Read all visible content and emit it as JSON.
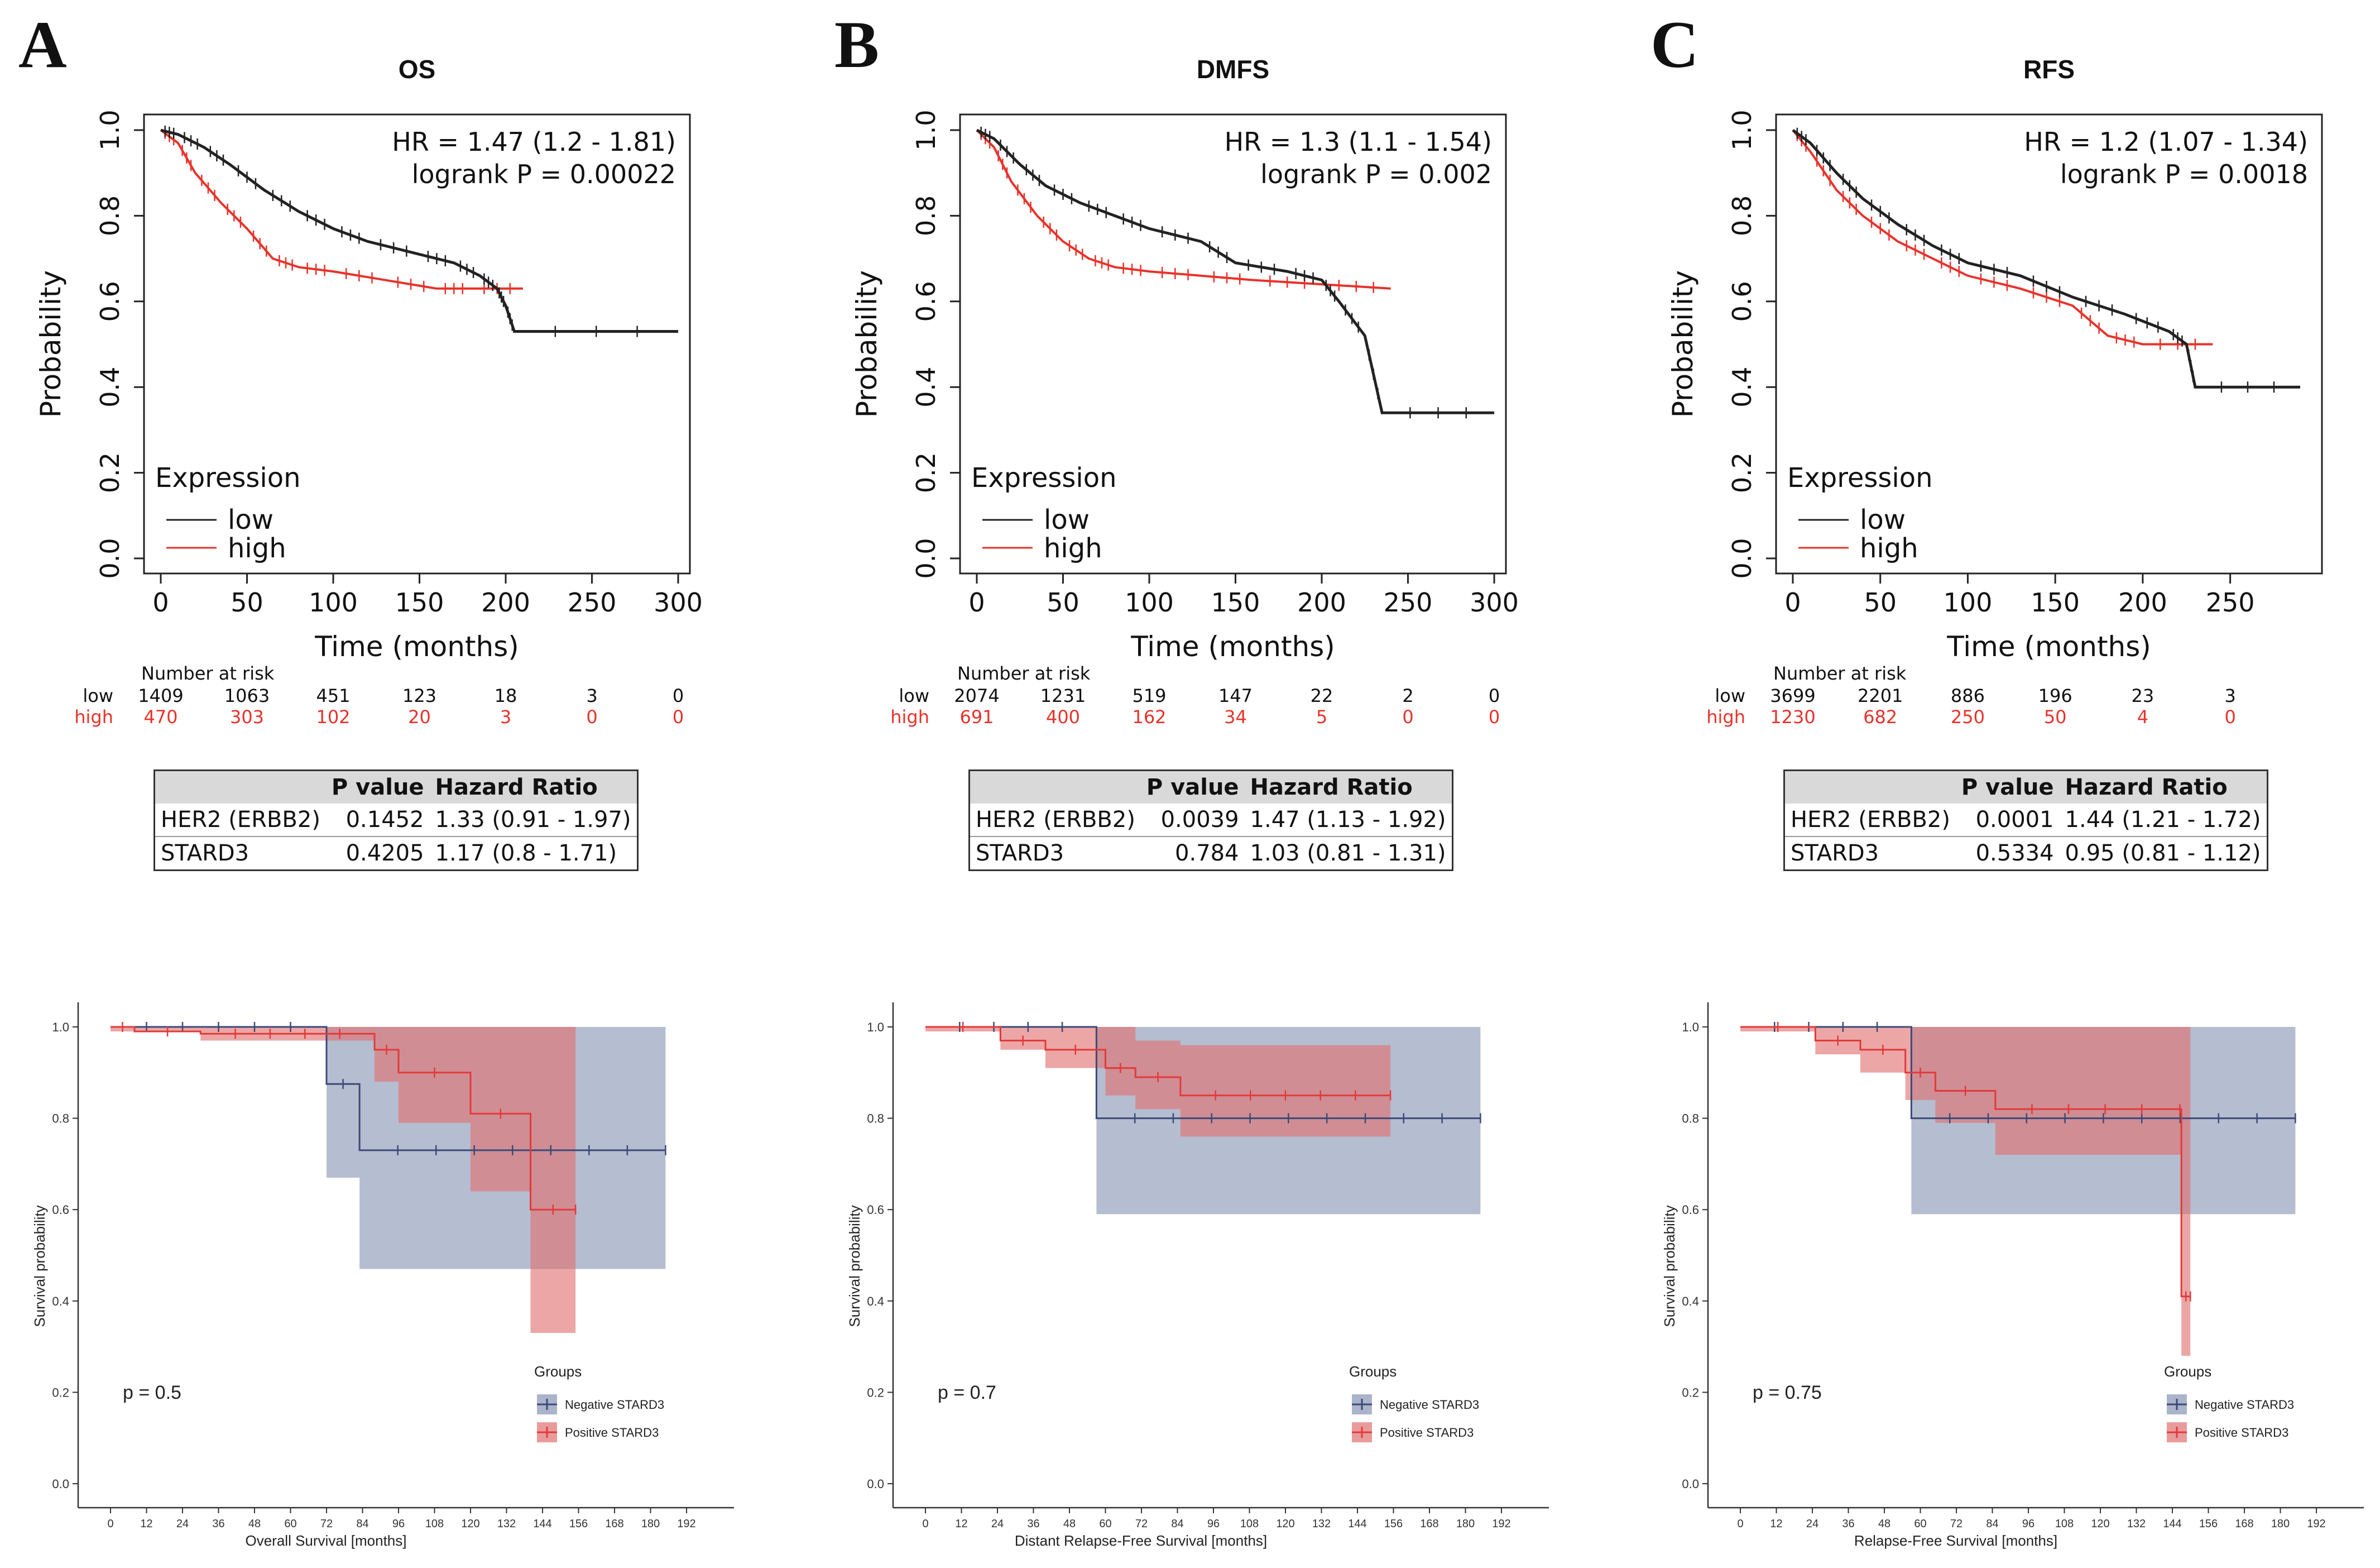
{
  "colors": {
    "low": "#222222",
    "high": "#e8322a",
    "neg": "#3b4a78",
    "neg_fill": "#8794b3",
    "pos": "#e23a3a",
    "pos_fill": "#e07070",
    "table_header": "#d9d9d9"
  },
  "table_headers": [
    "",
    "P value",
    "Hazard Ratio"
  ],
  "chart_data": [
    {
      "type": "line",
      "panel_letter": "A",
      "title": "OS",
      "xlabel": "Time (months)",
      "ylabel": "Probability",
      "xlim": [
        0,
        300
      ],
      "ylim": [
        0,
        1
      ],
      "xticks": [
        "0",
        "50",
        "100",
        "150",
        "200",
        "250",
        "300"
      ],
      "yticks": [
        "0.0",
        "0.2",
        "0.4",
        "0.6",
        "0.8",
        "1.0"
      ],
      "hr_text": "HR = 1.47 (1.2 - 1.81)",
      "logrank_text": "logrank P = 0.00022",
      "legend_title": "Expression",
      "series": [
        {
          "name": "low",
          "x": [
            0,
            10,
            25,
            40,
            60,
            80,
            100,
            120,
            150,
            170,
            185,
            195,
            200,
            205,
            300
          ],
          "y": [
            1,
            0.99,
            0.96,
            0.92,
            0.86,
            0.81,
            0.77,
            0.74,
            0.71,
            0.69,
            0.66,
            0.63,
            0.59,
            0.53,
            0.53
          ]
        },
        {
          "name": "high",
          "x": [
            0,
            10,
            20,
            35,
            50,
            65,
            80,
            100,
            130,
            160,
            180,
            210
          ],
          "y": [
            1,
            0.97,
            0.9,
            0.83,
            0.77,
            0.7,
            0.68,
            0.67,
            0.65,
            0.63,
            0.63,
            0.63
          ]
        }
      ],
      "risk_label": "Number at risk",
      "risk_x": [
        0,
        50,
        100,
        150,
        200,
        250,
        300
      ],
      "risk_low": [
        "1409",
        "1063",
        "451",
        "123",
        "18",
        "3",
        "0"
      ],
      "risk_high": [
        "470",
        "303",
        "102",
        "20",
        "3",
        "0",
        "0"
      ],
      "table_rows": [
        {
          "gene": "HER2 (ERBB2)",
          "p": "0.1452",
          "hr": "1.33 (0.91 - 1.97)"
        },
        {
          "gene": "STARD3",
          "p": "0.4205",
          "hr": "1.17 (0.8 - 1.71)"
        }
      ]
    },
    {
      "type": "line",
      "panel_letter": "B",
      "title": "DMFS",
      "xlabel": "Time (months)",
      "ylabel": "Probability",
      "xlim": [
        0,
        300
      ],
      "ylim": [
        0,
        1
      ],
      "xticks": [
        "0",
        "50",
        "100",
        "150",
        "200",
        "250",
        "300"
      ],
      "yticks": [
        "0.0",
        "0.2",
        "0.4",
        "0.6",
        "0.8",
        "1.0"
      ],
      "hr_text": "HR = 1.3 (1.1 - 1.54)",
      "logrank_text": "logrank P = 0.002",
      "legend_title": "Expression",
      "series": [
        {
          "name": "low",
          "x": [
            0,
            10,
            25,
            40,
            60,
            80,
            100,
            130,
            150,
            180,
            200,
            210,
            225,
            235,
            300
          ],
          "y": [
            1,
            0.98,
            0.92,
            0.87,
            0.83,
            0.8,
            0.77,
            0.74,
            0.69,
            0.67,
            0.65,
            0.6,
            0.52,
            0.34,
            0.34
          ]
        },
        {
          "name": "high",
          "x": [
            0,
            10,
            20,
            35,
            50,
            65,
            80,
            100,
            130,
            160,
            200,
            240
          ],
          "y": [
            1,
            0.96,
            0.88,
            0.8,
            0.74,
            0.7,
            0.68,
            0.67,
            0.66,
            0.65,
            0.64,
            0.63
          ]
        }
      ],
      "risk_label": "Number at risk",
      "risk_x": [
        0,
        50,
        100,
        150,
        200,
        250,
        300
      ],
      "risk_low": [
        "2074",
        "1231",
        "519",
        "147",
        "22",
        "2",
        "0"
      ],
      "risk_high": [
        "691",
        "400",
        "162",
        "34",
        "5",
        "0",
        "0"
      ],
      "table_rows": [
        {
          "gene": "HER2 (ERBB2)",
          "p": "0.0039",
          "hr": "1.47 (1.13 - 1.92)"
        },
        {
          "gene": "STARD3",
          "p": "0.784",
          "hr": "1.03 (0.81 - 1.31)"
        }
      ]
    },
    {
      "type": "line",
      "panel_letter": "C",
      "title": "RFS",
      "xlabel": "Time (months)",
      "ylabel": "Probability",
      "xlim": [
        0,
        290
      ],
      "ylim": [
        0,
        1
      ],
      "xticks": [
        "0",
        "50",
        "100",
        "150",
        "200",
        "250"
      ],
      "yticks": [
        "0.0",
        "0.2",
        "0.4",
        "0.6",
        "0.8",
        "1.0"
      ],
      "hr_text": "HR = 1.2 (1.07 - 1.34)",
      "logrank_text": "logrank P = 0.0018",
      "legend_title": "Expression",
      "series": [
        {
          "name": "low",
          "x": [
            0,
            10,
            25,
            40,
            60,
            80,
            100,
            130,
            160,
            190,
            215,
            225,
            230,
            290
          ],
          "y": [
            1,
            0.97,
            0.9,
            0.84,
            0.78,
            0.73,
            0.69,
            0.66,
            0.61,
            0.57,
            0.53,
            0.5,
            0.4,
            0.4
          ]
        },
        {
          "name": "high",
          "x": [
            0,
            10,
            25,
            40,
            60,
            80,
            100,
            130,
            160,
            180,
            200,
            240
          ],
          "y": [
            1,
            0.95,
            0.86,
            0.8,
            0.74,
            0.7,
            0.66,
            0.63,
            0.59,
            0.52,
            0.5,
            0.5
          ]
        }
      ],
      "risk_label": "Number at risk",
      "risk_x": [
        0,
        50,
        100,
        150,
        200,
        250
      ],
      "risk_low": [
        "3699",
        "2201",
        "886",
        "196",
        "23",
        "3"
      ],
      "risk_high": [
        "1230",
        "682",
        "250",
        "50",
        "4",
        "0"
      ],
      "table_rows": [
        {
          "gene": "HER2 (ERBB2)",
          "p": "0.0001",
          "hr": "1.44 (1.21 - 1.72)"
        },
        {
          "gene": "STARD3",
          "p": "0.5334",
          "hr": "0.95 (0.81 - 1.12)"
        }
      ]
    },
    {
      "type": "line",
      "subtype": "km-ci",
      "xlabel": "Overall Survival [months]",
      "ylabel": "Survival probability",
      "xlim": [
        0,
        192
      ],
      "ylim": [
        0,
        1
      ],
      "xticks": [
        "0",
        "12",
        "24",
        "36",
        "48",
        "60",
        "72",
        "84",
        "96",
        "108",
        "120",
        "132",
        "144",
        "156",
        "168",
        "180",
        "192"
      ],
      "yticks": [
        "0.0",
        "0.2",
        "0.4",
        "0.6",
        "0.8",
        "1.0"
      ],
      "p_text": "p = 0.5",
      "legend_title": "Groups",
      "series": [
        {
          "name": "Negative STARD3",
          "steps": [
            [
              0,
              1
            ],
            [
              72,
              0.875
            ],
            [
              83,
              0.73
            ],
            [
              185,
              0.73
            ]
          ],
          "ci_lower": [
            [
              0,
              1
            ],
            [
              72,
              0.67
            ],
            [
              83,
              0.47
            ],
            [
              185,
              0.47
            ]
          ],
          "ci_upper": [
            [
              0,
              1
            ],
            [
              185,
              1
            ]
          ]
        },
        {
          "name": "Positive STARD3",
          "steps": [
            [
              0,
              1
            ],
            [
              8,
              0.99
            ],
            [
              30,
              0.985
            ],
            [
              88,
              0.95
            ],
            [
              96,
              0.9
            ],
            [
              120,
              0.81
            ],
            [
              140,
              0.6
            ],
            [
              155,
              0.6
            ]
          ],
          "ci_lower": [
            [
              0,
              0.99
            ],
            [
              30,
              0.97
            ],
            [
              88,
              0.88
            ],
            [
              96,
              0.79
            ],
            [
              120,
              0.64
            ],
            [
              140,
              0.33
            ],
            [
              155,
              0.33
            ]
          ],
          "ci_upper": [
            [
              0,
              1
            ],
            [
              155,
              1
            ]
          ]
        }
      ]
    },
    {
      "type": "line",
      "subtype": "km-ci",
      "xlabel": "Distant Relapse-Free Survival [months]",
      "ylabel": "Survival probability",
      "xlim": [
        0,
        192
      ],
      "ylim": [
        0,
        1
      ],
      "xticks": [
        "0",
        "12",
        "24",
        "36",
        "48",
        "60",
        "72",
        "84",
        "96",
        "108",
        "120",
        "132",
        "144",
        "156",
        "168",
        "180",
        "192"
      ],
      "yticks": [
        "0.0",
        "0.2",
        "0.4",
        "0.6",
        "0.8",
        "1.0"
      ],
      "p_text": "p = 0.7",
      "legend_title": "Groups",
      "series": [
        {
          "name": "Negative STARD3",
          "steps": [
            [
              0,
              1
            ],
            [
              57,
              0.8
            ],
            [
              185,
              0.8
            ]
          ],
          "ci_lower": [
            [
              0,
              1
            ],
            [
              57,
              0.59
            ],
            [
              185,
              0.59
            ]
          ],
          "ci_upper": [
            [
              0,
              1
            ],
            [
              185,
              1
            ]
          ]
        },
        {
          "name": "Positive STARD3",
          "steps": [
            [
              0,
              1
            ],
            [
              25,
              0.97
            ],
            [
              40,
              0.95
            ],
            [
              60,
              0.91
            ],
            [
              70,
              0.89
            ],
            [
              85,
              0.85
            ],
            [
              155,
              0.85
            ]
          ],
          "ci_lower": [
            [
              0,
              0.99
            ],
            [
              25,
              0.95
            ],
            [
              40,
              0.91
            ],
            [
              60,
              0.85
            ],
            [
              70,
              0.82
            ],
            [
              85,
              0.76
            ],
            [
              155,
              0.76
            ]
          ],
          "ci_upper": [
            [
              0,
              1
            ],
            [
              60,
              1
            ],
            [
              70,
              0.97
            ],
            [
              85,
              0.96
            ],
            [
              155,
              0.96
            ]
          ]
        }
      ]
    },
    {
      "type": "line",
      "subtype": "km-ci",
      "xlabel": "Relapse-Free Survival [months]",
      "ylabel": "Survival probability",
      "xlim": [
        0,
        192
      ],
      "ylim": [
        0,
        1
      ],
      "xticks": [
        "0",
        "12",
        "24",
        "36",
        "48",
        "60",
        "72",
        "84",
        "96",
        "108",
        "120",
        "132",
        "144",
        "156",
        "168",
        "180",
        "192"
      ],
      "yticks": [
        "0.0",
        "0.2",
        "0.4",
        "0.6",
        "0.8",
        "1.0"
      ],
      "p_text": "p = 0.75",
      "legend_title": "Groups",
      "series": [
        {
          "name": "Negative STARD3",
          "steps": [
            [
              0,
              1
            ],
            [
              57,
              0.8
            ],
            [
              185,
              0.8
            ]
          ],
          "ci_lower": [
            [
              0,
              1
            ],
            [
              57,
              0.59
            ],
            [
              185,
              0.59
            ]
          ],
          "ci_upper": [
            [
              0,
              1
            ],
            [
              185,
              1
            ]
          ]
        },
        {
          "name": "Positive STARD3",
          "steps": [
            [
              0,
              1
            ],
            [
              25,
              0.97
            ],
            [
              40,
              0.95
            ],
            [
              55,
              0.9
            ],
            [
              65,
              0.86
            ],
            [
              85,
              0.82
            ],
            [
              146,
              0.82
            ],
            [
              147,
              0.41
            ],
            [
              150,
              0.41
            ]
          ],
          "ci_lower": [
            [
              0,
              0.99
            ],
            [
              25,
              0.94
            ],
            [
              40,
              0.9
            ],
            [
              55,
              0.84
            ],
            [
              65,
              0.79
            ],
            [
              85,
              0.72
            ],
            [
              146,
              0.72
            ],
            [
              147,
              0.28
            ],
            [
              150,
              0.28
            ]
          ],
          "ci_upper": [
            [
              0,
              1
            ],
            [
              150,
              1
            ]
          ]
        }
      ]
    }
  ]
}
